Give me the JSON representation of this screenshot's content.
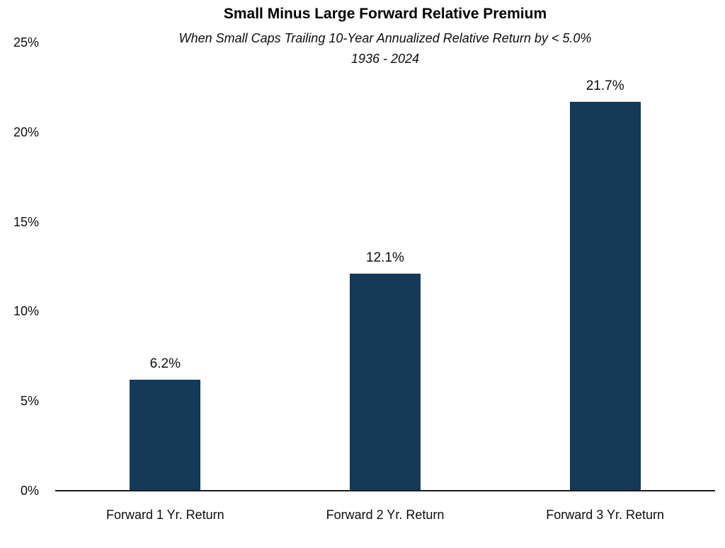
{
  "chart_data": {
    "type": "bar",
    "title": "Small Minus Large Forward Relative Premium",
    "subtitle": "When Small Caps Trailing 10-Year Annualized Relative Return by < 5.0%",
    "subtitle2": "1936 - 2024",
    "categories": [
      "Forward 1 Yr. Return",
      "Forward 2 Yr. Return",
      "Forward 3 Yr. Return"
    ],
    "values": [
      6.2,
      12.1,
      21.7
    ],
    "data_labels": [
      "6.2%",
      "12.1%",
      "21.7%"
    ],
    "xlabel": "",
    "ylabel": "",
    "ylim": [
      0,
      25
    ],
    "ytick_step": 5,
    "ytick_labels": [
      "0%",
      "5%",
      "10%",
      "15%",
      "20%",
      "25%"
    ],
    "grid": false,
    "legend": null,
    "colors": {
      "bar_fill": "#143A57",
      "axis_line": "#1a1a1a",
      "text": "#0d0d0d",
      "background": "#ffffff"
    }
  }
}
